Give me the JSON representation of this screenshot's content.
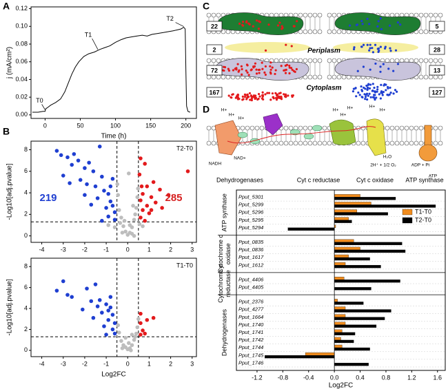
{
  "panel_labels": [
    "A",
    "B",
    "C",
    "D"
  ],
  "chart_data": [
    {
      "type": "line",
      "xlabel": "Time (h)",
      "ylabel": "j (mA/cm²)",
      "color": "#000000",
      "x": [
        -18,
        -10,
        -3,
        0,
        1,
        3,
        8,
        15,
        22,
        28,
        33,
        38,
        43,
        48,
        55,
        62,
        70,
        78,
        85,
        92,
        100,
        108,
        115,
        122,
        130,
        138,
        145,
        152,
        160,
        168,
        175,
        182,
        188,
        193,
        197,
        199,
        200,
        201,
        203,
        206
      ],
      "values": [
        0.003,
        0.003,
        0.004,
        0.004,
        0.007,
        0.008,
        0.011,
        0.014,
        0.018,
        0.026,
        0.036,
        0.046,
        0.054,
        0.06,
        0.066,
        0.069,
        0.071,
        0.074,
        0.076,
        0.078,
        0.082,
        0.085,
        0.087,
        0.088,
        0.089,
        0.09,
        0.089,
        0.091,
        0.092,
        0.093,
        0.094,
        0.095,
        0.096,
        0.097,
        0.099,
        0.097,
        0.05,
        0.01,
        0.004,
        0.003
      ],
      "xlim": [
        -20,
        215
      ],
      "ylim": [
        -0.004,
        0.122
      ],
      "xticks": [
        0,
        50,
        100,
        150,
        200
      ],
      "yticks": [
        {
          "value": 0,
          "label": "0.00"
        },
        {
          "value": 0.02,
          "label": "0.02"
        },
        {
          "value": 0.04,
          "label": "0.04"
        },
        {
          "value": 0.06,
          "label": "0.06"
        },
        {
          "value": 0.08,
          "label": "0.08"
        },
        {
          "value": 0.1,
          "label": "0.10"
        },
        {
          "value": 0.12,
          "label": "0.12"
        }
      ],
      "annotations": [
        {
          "text": "T0",
          "x": 0,
          "y": 0.005
        },
        {
          "text": "T1",
          "x": 75,
          "y": 0.073
        },
        {
          "text": "T2",
          "x": 197,
          "y": 0.099
        }
      ]
    },
    {
      "type": "scatter",
      "ylabel": "-Log10[adj.pvalue]",
      "xlim": [
        -4.5,
        3.2
      ],
      "ylim": [
        -0.6,
        8.8
      ],
      "xticks": [
        -4,
        -3,
        -2,
        -1,
        0,
        1,
        2,
        3
      ],
      "yticks": [
        0,
        2,
        4,
        6,
        8
      ],
      "vlines": [
        -0.5,
        0.5
      ],
      "hline": 1.3,
      "annotations": [
        {
          "text": "T2-T0",
          "color": "#000000"
        },
        {
          "text": "219",
          "color": "#1f3fd1"
        },
        {
          "text": "285",
          "color": "#d62020"
        }
      ],
      "series": [
        {
          "color": "#bdbdbd",
          "x": [
            0,
            0.1,
            -0.1,
            0.2,
            -0.2,
            0.3,
            -0.3,
            0.4,
            -0.4,
            0.45,
            -0.45,
            0.2,
            -0.25,
            0.35,
            -0.35,
            0.48,
            -0.48,
            0.1,
            -0.15,
            0.25,
            -0.6,
            0.7,
            -0.9,
            0.55,
            0.05,
            0.3
          ],
          "values": [
            0.1,
            0.3,
            0.4,
            0.8,
            0.9,
            1.5,
            1.7,
            2.6,
            2.4,
            3.6,
            3.8,
            0.2,
            0.3,
            2,
            1.2,
            4.4,
            4.8,
            1,
            1.4,
            2.8,
            0.8,
            0.9,
            1,
            1.1,
            5.8,
            0
          ]
        },
        {
          "color": "#1f3fd1",
          "x": [
            -3.3,
            -3.1,
            -2.8,
            -2.5,
            -2.3,
            -2.6,
            -2,
            -1.8,
            -1.6,
            -1.3,
            -1.2,
            -2.2,
            -1.9,
            -1.5,
            -1.1,
            -0.9,
            -1.4,
            -0.8,
            -0.7,
            -1,
            -0.6,
            -0.9,
            -0.6,
            -3,
            -2.7,
            -1.7,
            -0.7,
            -2,
            -1.2,
            -0.8
          ],
          "values": [
            7.9,
            7.5,
            7.3,
            7.6,
            7,
            6.6,
            6.3,
            6.8,
            6,
            8.3,
            5.5,
            5.2,
            4.8,
            4.6,
            4.2,
            3.9,
            3.5,
            3.2,
            2.8,
            2.6,
            2.2,
            1.8,
            1.5,
            5.6,
            4.9,
            2.9,
            5.3,
            3.8,
            1.4,
            4.6
          ]
        },
        {
          "color": "#e31a1c",
          "x": [
            0.6,
            0.8,
            2.8,
            1.2,
            0.9,
            1.5,
            0.7,
            1.1,
            0.6,
            1.3,
            0.9,
            0.7,
            1,
            0.6,
            1.6,
            0.8,
            1.9,
            0.55,
            1.1,
            0.65
          ],
          "values": [
            7.2,
            6.7,
            6,
            5,
            4.6,
            4.3,
            3.9,
            3.6,
            3.3,
            3.1,
            2.8,
            2.4,
            2.1,
            1.7,
            2.6,
            1.4,
            3.8,
            5.7,
            2.4,
            4.6
          ]
        }
      ]
    },
    {
      "type": "scatter",
      "xlabel": "Log2FC",
      "ylabel": "-Log10[adj.pvalue]",
      "xlim": [
        -4.5,
        3.2
      ],
      "ylim": [
        -0.6,
        8.8
      ],
      "xticks": [
        -4,
        -3,
        -2,
        -1,
        0,
        1,
        2,
        3
      ],
      "yticks": [
        0,
        2,
        4,
        6,
        8
      ],
      "vlines": [
        -0.5,
        0.5
      ],
      "hline": 1.3,
      "annotations": [
        {
          "text": "T1-T0",
          "color": "#000000"
        }
      ],
      "series": [
        {
          "color": "#bdbdbd",
          "x": [
            0,
            0.1,
            -0.1,
            0.2,
            -0.2,
            0.3,
            -0.3,
            0.4,
            -0.4,
            0.45,
            0.15,
            -0.25,
            0.35,
            -0.45,
            0.5,
            0.2,
            -0.1,
            0.05
          ],
          "values": [
            0.1,
            0.2,
            0.3,
            0.5,
            0.5,
            1,
            0.9,
            1.6,
            1.7,
            2.2,
            0,
            0.2,
            1.3,
            2.4,
            3,
            1.5,
            1.2,
            0.7
          ]
        },
        {
          "color": "#1f3fd1",
          "x": [
            -3,
            -3.3,
            -2.8,
            -2.1,
            -1.9,
            -1.5,
            -1.3,
            -1,
            -0.8,
            -1.2,
            -0.7,
            -1.6,
            -0.9,
            -0.6,
            -1.1,
            -0.7,
            -0.6,
            -1.4,
            -0.8,
            -1.7,
            -2.6,
            -0.9,
            -1
          ],
          "values": [
            6.6,
            5.7,
            5.3,
            3.9,
            5.9,
            6.3,
            4.8,
            4.4,
            4.1,
            3.6,
            3.4,
            3.1,
            2.9,
            2.6,
            2.3,
            2,
            1.6,
            4.2,
            5.1,
            4.7,
            5.1,
            3.8,
            1.5
          ]
        },
        {
          "color": "#e31a1c",
          "x": [
            0.6,
            0.9,
            1.2,
            0.7,
            0.6,
            0.8,
            0.6
          ],
          "values": [
            2.6,
            2.9,
            3.1,
            1.9,
            1.5,
            1.6,
            3.5
          ]
        }
      ]
    },
    {
      "type": "bar",
      "orientation": "horizontal",
      "xlabel": "Log2FC",
      "xlim": [
        -1.52,
        1.72
      ],
      "xticks": [
        -1.2,
        -0.8,
        -0.4,
        {
          "value": 0,
          "label": "0.0"
        },
        0.4,
        0.8,
        1.2,
        1.6
      ],
      "legend": "upper right",
      "groups": [
        {
          "label": [
            "ATP synthase"
          ],
          "categories": [
            "Pput_5301",
            "Pput_5299",
            "Pput_5296",
            "Pput_5295",
            "Pput_5294"
          ]
        },
        {
          "label": [
            "Cytochrome c",
            "oxidase"
          ],
          "categories": [
            "Pput_0835",
            "Pput_0836",
            "Pput_1617",
            "Pput_1612"
          ]
        },
        {
          "label": [
            "Cytochrome c",
            "reductase"
          ],
          "categories": [
            "Pput_4406",
            "Pput_4405"
          ]
        },
        {
          "label": [
            "Dehydrogenases"
          ],
          "categories": [
            "Pput_2376",
            "Pput_4277",
            "Pput_1664",
            "Pput_1740",
            "Pput_1741",
            "Pput_1742",
            "Pput_1744",
            "Pput_1745",
            "Pput_1746"
          ]
        }
      ],
      "series": [
        {
          "name": "T1-T0",
          "color": "#f08c1e",
          "values": [
            0.4,
            0.57,
            0.35,
            0.22,
            0.02,
            0.3,
            0.4,
            0.22,
            0.17,
            0.15,
            0,
            0.05,
            0.17,
            0.17,
            0.17,
            0.12,
            0.1,
            0.12,
            -0.45,
            0
          ]
        },
        {
          "name": "T2-T0",
          "color": "#000000",
          "values": [
            0.95,
            1.57,
            0.83,
            0.27,
            -0.72,
            1.05,
            1.1,
            0.55,
            0.72,
            1.02,
            0.57,
            0.45,
            0.88,
            0.78,
            0.65,
            0.32,
            0.3,
            0.55,
            -1.08,
            0.53
          ]
        }
      ]
    }
  ],
  "diagram_c": {
    "counts": [
      22,
      5,
      2,
      28,
      72,
      13,
      167,
      127
    ],
    "periplasm": "Periplasm",
    "cytoplasm": "Cytoplasm"
  },
  "diagram_d": {
    "proton": "H+",
    "enzymes": [
      "Dehydrogenases",
      "Cyt c reductase",
      "Cyt c oxidase",
      "ATP synthase"
    ],
    "species": [
      "NADH",
      "NAD+",
      "H₂O",
      "2H⁺ + 1/2 O₂",
      "ADP + Pi",
      "ATP"
    ]
  }
}
